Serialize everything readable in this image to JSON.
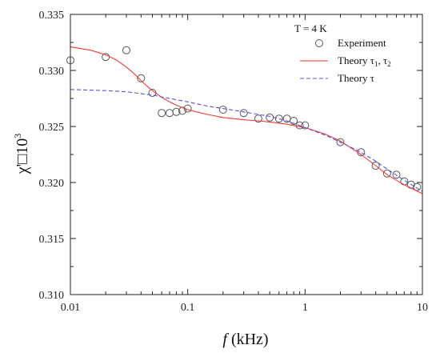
{
  "chart_data": {
    "type": "scatter",
    "xlabel": "f (kHz)",
    "xlabel_italic_part": "f",
    "xlabel_rest": " (kHz)",
    "ylabel": "χ'□10³",
    "ylabel_main": "χ'□10",
    "ylabel_sup": "3",
    "xscale": "log",
    "xlim": [
      0.01,
      10
    ],
    "ylim": [
      0.31,
      0.335
    ],
    "x_ticks": [
      {
        "value": 0.01,
        "label": "0.01"
      },
      {
        "value": 0.1,
        "label": "0.1"
      },
      {
        "value": 1,
        "label": "1"
      },
      {
        "value": 10,
        "label": "10"
      }
    ],
    "y_ticks": [
      {
        "value": 0.31,
        "label": "0.310"
      },
      {
        "value": 0.315,
        "label": "0.315"
      },
      {
        "value": 0.32,
        "label": "0.320"
      },
      {
        "value": 0.325,
        "label": "0.325"
      },
      {
        "value": 0.33,
        "label": "0.330"
      },
      {
        "value": 0.335,
        "label": "0.335"
      }
    ],
    "grid": false,
    "legend_position": "top-right",
    "legend_title": "T = 4 K",
    "series": [
      {
        "name": "Experiment",
        "kind": "markers",
        "color": "#555555",
        "x": [
          0.01,
          0.02,
          0.03,
          0.04,
          0.05,
          0.06,
          0.07,
          0.08,
          0.09,
          0.1,
          0.2,
          0.3,
          0.4,
          0.5,
          0.6,
          0.7,
          0.8,
          0.9,
          1.0,
          2,
          3,
          4,
          5,
          6,
          7,
          8,
          9
        ],
        "y": [
          0.3309,
          0.3312,
          0.3318,
          0.3293,
          0.328,
          0.3262,
          0.3262,
          0.3263,
          0.3264,
          0.3266,
          0.3265,
          0.3262,
          0.3257,
          0.3258,
          0.3257,
          0.3257,
          0.3255,
          0.3251,
          0.3251,
          0.3236,
          0.3227,
          0.3215,
          0.3208,
          0.3207,
          0.3201,
          0.3198,
          0.3196
        ]
      },
      {
        "name": "Theory τ1, τ2",
        "name_main": "Theory τ",
        "name_sub1": "1",
        "name_mid": ", τ",
        "name_sub2": "2",
        "kind": "solid",
        "color": "#ee3a3a",
        "x": [
          0.01,
          0.015,
          0.02,
          0.025,
          0.03,
          0.035,
          0.04,
          0.045,
          0.05,
          0.06,
          0.07,
          0.08,
          0.1,
          0.13,
          0.16,
          0.2,
          0.3,
          0.4,
          0.5,
          0.7,
          1.0,
          1.5,
          2,
          3,
          4,
          5,
          6,
          7,
          8,
          10
        ],
        "y": [
          0.3321,
          0.3318,
          0.3314,
          0.3309,
          0.3303,
          0.3297,
          0.3291,
          0.3286,
          0.3282,
          0.3276,
          0.3272,
          0.3269,
          0.3265,
          0.3262,
          0.326,
          0.3258,
          0.3256,
          0.3255,
          0.3254,
          0.3252,
          0.3249,
          0.3243,
          0.3237,
          0.3225,
          0.3215,
          0.3207,
          0.3202,
          0.3198,
          0.3195,
          0.319
        ]
      },
      {
        "name": "Theory τ",
        "kind": "dashed",
        "color": "#5555dd",
        "x": [
          0.01,
          0.02,
          0.03,
          0.05,
          0.07,
          0.1,
          0.15,
          0.2,
          0.3,
          0.5,
          0.7,
          1.0,
          1.5,
          2,
          3,
          4,
          5,
          7,
          10
        ],
        "y": [
          0.3283,
          0.3282,
          0.3281,
          0.3278,
          0.3275,
          0.3272,
          0.3268,
          0.3266,
          0.3263,
          0.3259,
          0.3255,
          0.3249,
          0.3242,
          0.3236,
          0.3227,
          0.3219,
          0.3212,
          0.3202,
          0.3192
        ]
      }
    ]
  }
}
